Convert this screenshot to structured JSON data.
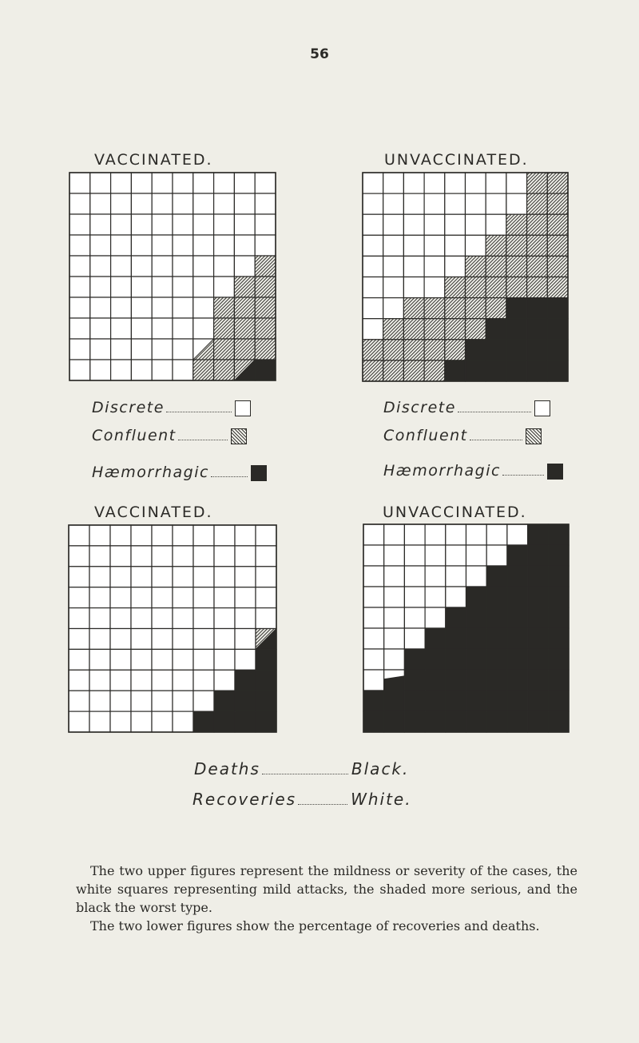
{
  "page_number": "56",
  "figures": [
    {
      "id": "vaccinated-severity",
      "title": "VACCINATED.",
      "rows": [
        "WWWWWWWWWW",
        "WWWWWWWWWW",
        "WWWWWWWWWW",
        "WWWWWWWWWW",
        "WWWWWWWWWH",
        "WWWWWWWWHH",
        "WWWWWWWHHH",
        "WWWWWWWHHH",
        "WWWWWWUHHH",
        "WWWWWWHHVB"
      ]
    },
    {
      "id": "unvaccinated-severity",
      "title": "UNVACCINATED.",
      "rows": [
        "WWWWWWWWHH",
        "WWWWWWWWHH",
        "WWWWWWWHHH",
        "WWWWWWHHHH",
        "WWWWWHHHHH",
        "WWWWHHHHHH",
        "WWHHHHHBBB",
        "WHHHHHBBBB",
        "HHHHHBBBBB",
        "HHHHBBBBBB"
      ]
    },
    {
      "id": "vaccinated-outcome",
      "title": "VACCINATED.",
      "rows": [
        "WWWWWWWWWW",
        "WWWWWWWWWW",
        "WWWWWWWWWW",
        "WWWWWWWWWW",
        "WWWWWWWWWW",
        "WWWWWWWWWV",
        "WWWWWWWWWB",
        "WWWWWWWWBB",
        "WWWWWWWBBB",
        "WWWWWWBBBB"
      ]
    },
    {
      "id": "unvaccinated-outcome",
      "title": "UNVACCINATED.",
      "rows": [
        "WWWWWWWWBB",
        "WWWWWWWBBB",
        "WWWWWWBBBB",
        "WWWWWBBBBB",
        "WWWWBBBBBB",
        "WWWBBBBBBB",
        "WWBBBBBBBB",
        "WLBBBBBBBB",
        "BBBBBBBBBB",
        "BBBBBBBBBB"
      ]
    }
  ],
  "legend": {
    "discrete": "Discrete",
    "confluent": "Confluent",
    "haemorrhagic": "Hæmorrhagic"
  },
  "outcome_legend": {
    "deaths": "Deaths",
    "black": "Black.",
    "recoveries": "Recoveries",
    "white": "White."
  },
  "caption": {
    "p1": "The two upper figures represent the mildness or severity of the cases, the white squares representing mild attacks, the shaded more serious, and the black the worst type.",
    "p2": "The two lower figures show the percentage of recoveries and deaths."
  },
  "colors": {
    "paper": "#efeee7",
    "ink": "#2b2a27",
    "cell_white": "#ffffff",
    "cell_black": "#2a2926"
  }
}
